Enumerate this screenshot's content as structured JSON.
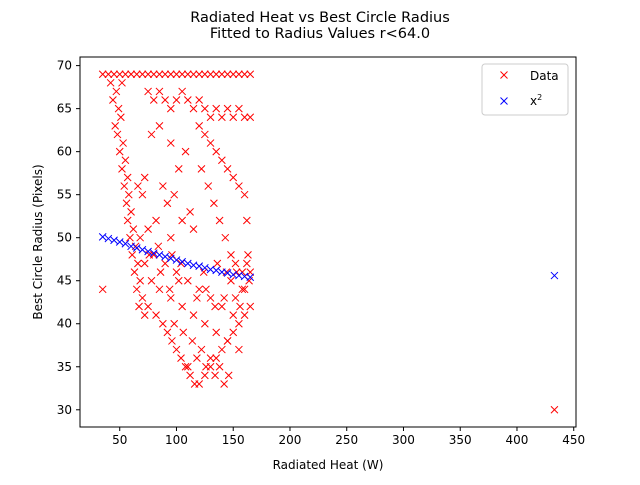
{
  "chart_data": {
    "type": "scatter",
    "title": "Radiated Heat vs Best Circle Radius",
    "subtitle": "Fitted to Radius Values r<64.0",
    "xlabel": "Radiated Heat (W)",
    "ylabel": "Best Circle Radius (Pixels)",
    "xlim": [
      15,
      452
    ],
    "ylim": [
      28,
      71
    ],
    "xticks": [
      50,
      100,
      150,
      200,
      250,
      300,
      350,
      400,
      450
    ],
    "yticks": [
      30,
      35,
      40,
      45,
      50,
      55,
      60,
      65,
      70
    ],
    "grid": false,
    "legend_position": "top-right",
    "marker": "x",
    "series": [
      {
        "name": "Data",
        "color": "#ff0000",
        "points": [
          [
            35,
            44
          ],
          [
            433,
            30
          ],
          [
            35,
            69
          ],
          [
            40,
            69
          ],
          [
            45,
            69
          ],
          [
            50,
            69
          ],
          [
            55,
            69
          ],
          [
            60,
            69
          ],
          [
            65,
            69
          ],
          [
            70,
            69
          ],
          [
            75,
            69
          ],
          [
            80,
            69
          ],
          [
            85,
            69
          ],
          [
            90,
            69
          ],
          [
            95,
            69
          ],
          [
            100,
            69
          ],
          [
            105,
            69
          ],
          [
            110,
            69
          ],
          [
            115,
            69
          ],
          [
            120,
            69
          ],
          [
            125,
            69
          ],
          [
            130,
            69
          ],
          [
            135,
            69
          ],
          [
            140,
            69
          ],
          [
            145,
            69
          ],
          [
            150,
            69
          ],
          [
            155,
            69
          ],
          [
            160,
            69
          ],
          [
            165,
            69
          ],
          [
            42,
            68
          ],
          [
            47,
            67
          ],
          [
            52,
            68
          ],
          [
            44,
            66
          ],
          [
            49,
            65
          ],
          [
            51,
            64
          ],
          [
            46,
            63
          ],
          [
            48,
            62
          ],
          [
            53,
            61
          ],
          [
            50,
            60
          ],
          [
            55,
            59
          ],
          [
            52,
            58
          ],
          [
            57,
            57
          ],
          [
            54,
            56
          ],
          [
            58,
            55
          ],
          [
            56,
            54
          ],
          [
            60,
            53
          ],
          [
            57,
            52
          ],
          [
            62,
            51
          ],
          [
            59,
            50
          ],
          [
            64,
            49
          ],
          [
            61,
            48
          ],
          [
            66,
            47
          ],
          [
            63,
            46
          ],
          [
            68,
            45
          ],
          [
            65,
            44
          ],
          [
            70,
            43
          ],
          [
            67,
            42
          ],
          [
            72,
            41
          ],
          [
            75,
            67
          ],
          [
            80,
            66
          ],
          [
            85,
            67
          ],
          [
            90,
            66
          ],
          [
            95,
            65
          ],
          [
            100,
            66
          ],
          [
            105,
            67
          ],
          [
            110,
            66
          ],
          [
            115,
            65
          ],
          [
            120,
            66
          ],
          [
            125,
            65
          ],
          [
            130,
            64
          ],
          [
            135,
            65
          ],
          [
            140,
            64
          ],
          [
            145,
            65
          ],
          [
            150,
            64
          ],
          [
            155,
            65
          ],
          [
            160,
            64
          ],
          [
            165,
            64
          ],
          [
            120,
            63
          ],
          [
            125,
            62
          ],
          [
            130,
            61
          ],
          [
            135,
            60
          ],
          [
            140,
            59
          ],
          [
            145,
            58
          ],
          [
            150,
            57
          ],
          [
            155,
            56
          ],
          [
            160,
            55
          ],
          [
            122,
            58
          ],
          [
            128,
            56
          ],
          [
            133,
            54
          ],
          [
            138,
            52
          ],
          [
            143,
            50
          ],
          [
            148,
            48
          ],
          [
            153,
            46
          ],
          [
            158,
            44
          ],
          [
            162,
            52
          ],
          [
            163,
            48
          ],
          [
            164,
            45
          ],
          [
            85,
            63
          ],
          [
            78,
            62
          ],
          [
            95,
            61
          ],
          [
            108,
            60
          ],
          [
            102,
            58
          ],
          [
            72,
            57
          ],
          [
            66,
            56
          ],
          [
            88,
            56
          ],
          [
            98,
            55
          ],
          [
            70,
            55
          ],
          [
            92,
            54
          ],
          [
            112,
            53
          ],
          [
            105,
            52
          ],
          [
            82,
            52
          ],
          [
            75,
            51
          ],
          [
            115,
            51
          ],
          [
            95,
            50
          ],
          [
            68,
            50
          ],
          [
            80,
            48
          ],
          [
            90,
            47
          ],
          [
            100,
            46
          ],
          [
            110,
            45
          ],
          [
            120,
            44
          ],
          [
            130,
            43
          ],
          [
            140,
            42
          ],
          [
            150,
            41
          ],
          [
            85,
            44
          ],
          [
            95,
            43
          ],
          [
            105,
            42
          ],
          [
            115,
            41
          ],
          [
            125,
            40
          ],
          [
            135,
            39
          ],
          [
            145,
            38
          ],
          [
            155,
            37
          ],
          [
            75,
            42
          ],
          [
            82,
            41
          ],
          [
            88,
            40
          ],
          [
            92,
            39
          ],
          [
            96,
            38
          ],
          [
            100,
            37
          ],
          [
            104,
            36
          ],
          [
            108,
            35
          ],
          [
            112,
            34
          ],
          [
            116,
            33
          ],
          [
            120,
            33
          ],
          [
            125,
            34
          ],
          [
            130,
            35
          ],
          [
            135,
            36
          ],
          [
            140,
            37
          ],
          [
            145,
            38
          ],
          [
            150,
            39
          ],
          [
            155,
            40
          ],
          [
            160,
            41
          ],
          [
            165,
            42
          ],
          [
            78,
            45
          ],
          [
            86,
            46
          ],
          [
            94,
            44
          ],
          [
            102,
            45
          ],
          [
            118,
            43
          ],
          [
            126,
            44
          ],
          [
            134,
            42
          ],
          [
            142,
            43
          ],
          [
            148,
            45
          ],
          [
            152,
            43
          ],
          [
            156,
            42
          ],
          [
            160,
            44
          ],
          [
            98,
            40
          ],
          [
            106,
            39
          ],
          [
            114,
            38
          ],
          [
            122,
            37
          ],
          [
            130,
            36
          ],
          [
            138,
            35
          ],
          [
            146,
            34
          ],
          [
            110,
            35
          ],
          [
            118,
            36
          ],
          [
            126,
            35
          ],
          [
            134,
            34
          ],
          [
            142,
            33
          ],
          [
            72,
            47
          ],
          [
            76,
            48
          ],
          [
            84,
            49
          ],
          [
            96,
            48
          ],
          [
            104,
            47
          ],
          [
            124,
            46
          ],
          [
            136,
            47
          ],
          [
            144,
            46
          ],
          [
            152,
            47
          ],
          [
            158,
            46
          ],
          [
            162,
            47
          ],
          [
            165,
            46
          ]
        ]
      },
      {
        "name": "x^2",
        "color": "#0000ff",
        "points": [
          [
            35,
            50.1
          ],
          [
            40,
            49.9
          ],
          [
            45,
            49.7
          ],
          [
            50,
            49.5
          ],
          [
            55,
            49.3
          ],
          [
            60,
            49.0
          ],
          [
            65,
            48.8
          ],
          [
            70,
            48.6
          ],
          [
            75,
            48.4
          ],
          [
            80,
            48.2
          ],
          [
            85,
            48.0
          ],
          [
            90,
            47.8
          ],
          [
            95,
            47.6
          ],
          [
            100,
            47.4
          ],
          [
            105,
            47.2
          ],
          [
            110,
            47.0
          ],
          [
            115,
            46.8
          ],
          [
            120,
            46.7
          ],
          [
            125,
            46.5
          ],
          [
            130,
            46.3
          ],
          [
            135,
            46.2
          ],
          [
            140,
            46.0
          ],
          [
            145,
            45.9
          ],
          [
            150,
            45.7
          ],
          [
            155,
            45.6
          ],
          [
            160,
            45.5
          ],
          [
            165,
            45.4
          ],
          [
            433,
            45.6
          ]
        ]
      }
    ]
  }
}
